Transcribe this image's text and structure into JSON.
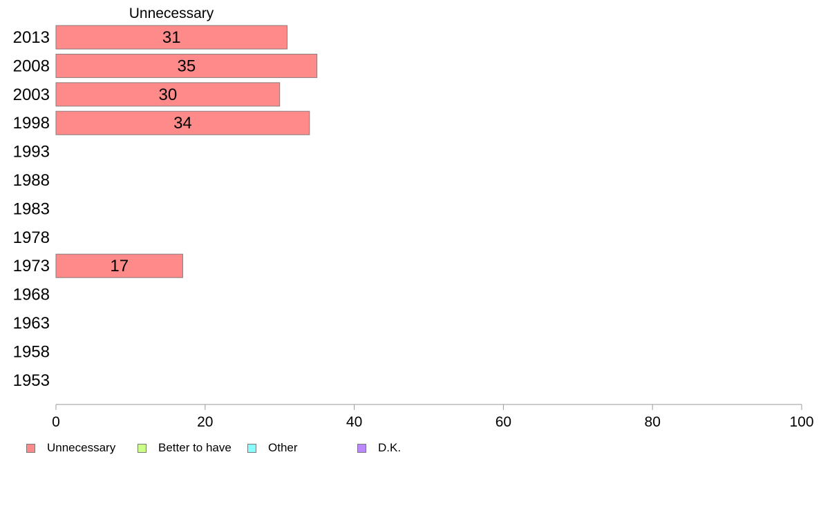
{
  "chart_data": {
    "type": "bar",
    "orientation": "horizontal",
    "stacked": true,
    "title": "Unnecessary",
    "categories": [
      "2013",
      "2008",
      "2003",
      "1998",
      "1993",
      "1988",
      "1983",
      "1978",
      "1973",
      "1968",
      "1963",
      "1958",
      "1953"
    ],
    "series": [
      {
        "name": "Unnecessary",
        "color": "#ff8a8a",
        "values": [
          31,
          35,
          30,
          34,
          null,
          null,
          null,
          null,
          17,
          null,
          null,
          null,
          null
        ]
      },
      {
        "name": "Better to have",
        "color": "#ccff88",
        "values": [
          null,
          null,
          null,
          null,
          null,
          null,
          null,
          null,
          null,
          null,
          null,
          null,
          null
        ]
      },
      {
        "name": "Other",
        "color": "#88ffff",
        "values": [
          null,
          null,
          null,
          null,
          null,
          null,
          null,
          null,
          null,
          null,
          null,
          null,
          null
        ]
      },
      {
        "name": "D.K.",
        "color": "#bb88ff",
        "values": [
          null,
          null,
          null,
          null,
          null,
          null,
          null,
          null,
          null,
          null,
          null,
          null,
          null
        ]
      }
    ],
    "data_labels": [
      "31",
      "35",
      "30",
      "34",
      "",
      "",
      "",
      "",
      "17",
      "",
      "",
      "",
      ""
    ],
    "xlim": [
      0,
      100
    ],
    "xticks": [
      "0",
      "20",
      "40",
      "60",
      "80",
      "100"
    ],
    "xlabel": "",
    "ylabel": "",
    "grid": false,
    "legend_position": "bottom"
  }
}
